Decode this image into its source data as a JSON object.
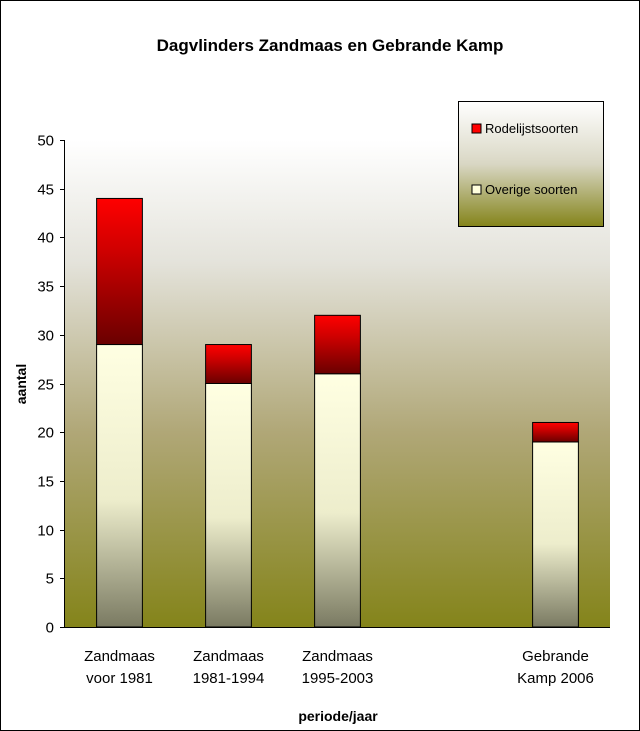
{
  "chart_data": {
    "type": "bar",
    "stacked": true,
    "title": "Dagvlinders Zandmaas en Gebrande Kamp",
    "xlabel": "periode/jaar",
    "ylabel": "aantal",
    "ylim": [
      0,
      50
    ],
    "yticks": [
      0,
      5,
      10,
      15,
      20,
      25,
      30,
      35,
      40,
      45,
      50
    ],
    "grid": false,
    "legend_position": "top-right",
    "categories": [
      [
        "Zandmaas",
        "voor 1981"
      ],
      [
        "Zandmaas",
        "1981-1994"
      ],
      [
        "Zandmaas",
        "1995-2003"
      ],
      [],
      [
        "Gebrande",
        "Kamp 2006"
      ]
    ],
    "series": [
      {
        "name": "Overige soorten",
        "values": [
          29,
          25,
          26,
          null,
          19
        ],
        "color": "#ffffdd"
      },
      {
        "name": "Rodelijstsoorten",
        "values": [
          15,
          4,
          6,
          null,
          2
        ],
        "color": "#ff0000"
      }
    ]
  }
}
